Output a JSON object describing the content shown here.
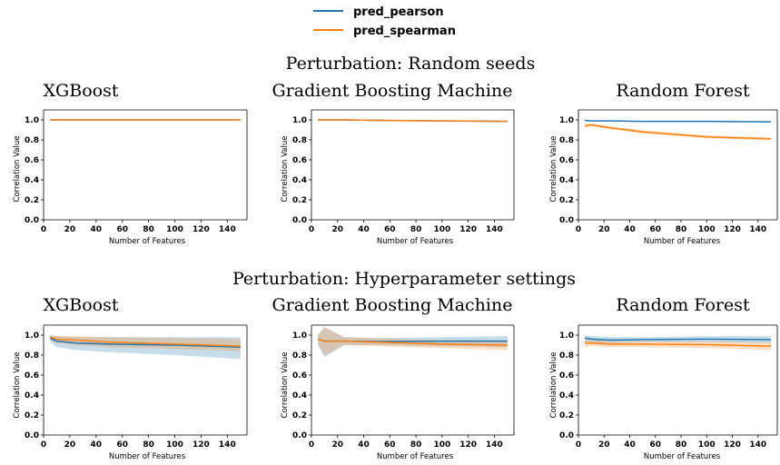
{
  "legend": {
    "entries": [
      {
        "label": "pred_pearson",
        "color": "#1f77b4"
      },
      {
        "label": "pred_spearman",
        "color": "#ff7f0e"
      }
    ]
  },
  "sections": [
    {
      "title": "Perturbation: Random seeds"
    },
    {
      "title": "Perturbation: Hyperparameter settings"
    }
  ],
  "chart_data": [
    {
      "type": "line",
      "section": "Perturbation: Random seeds",
      "title": "XGBoost",
      "xlabel": "Number of Features",
      "ylabel": "Correlation Value",
      "xlim": [
        0,
        155
      ],
      "ylim": [
        0,
        1.1
      ],
      "xticks": [
        0,
        20,
        40,
        60,
        80,
        100,
        120,
        140
      ],
      "yticks": [
        0.0,
        0.2,
        0.4,
        0.6,
        0.8,
        1.0
      ],
      "x": [
        5,
        10,
        25,
        50,
        100,
        150
      ],
      "series": [
        {
          "name": "pred_pearson",
          "color": "#1f77b4",
          "values": [
            1.0,
            1.0,
            1.0,
            1.0,
            1.0,
            1.0
          ],
          "lower": [
            1.0,
            1.0,
            1.0,
            1.0,
            1.0,
            1.0
          ],
          "upper": [
            1.0,
            1.0,
            1.0,
            1.0,
            1.0,
            1.0
          ]
        },
        {
          "name": "pred_spearman",
          "color": "#ff7f0e",
          "values": [
            1.0,
            1.0,
            1.0,
            1.0,
            1.0,
            1.0
          ],
          "lower": [
            1.0,
            1.0,
            1.0,
            1.0,
            1.0,
            1.0
          ],
          "upper": [
            1.0,
            1.0,
            1.0,
            1.0,
            1.0,
            1.0
          ]
        }
      ]
    },
    {
      "type": "line",
      "section": "Perturbation: Random seeds",
      "title": "Gradient Boosting Machine",
      "xlabel": "Number of Features",
      "ylabel": "Correlation Value",
      "xlim": [
        0,
        155
      ],
      "ylim": [
        0,
        1.1
      ],
      "xticks": [
        0,
        20,
        40,
        60,
        80,
        100,
        120,
        140
      ],
      "yticks": [
        0.0,
        0.2,
        0.4,
        0.6,
        0.8,
        1.0
      ],
      "x": [
        5,
        10,
        25,
        50,
        100,
        150
      ],
      "series": [
        {
          "name": "pred_pearson",
          "color": "#1f77b4",
          "values": [
            1.0,
            1.0,
            1.0,
            0.995,
            0.99,
            0.985
          ],
          "lower": [
            0.99,
            0.995,
            0.995,
            0.99,
            0.985,
            0.98
          ],
          "upper": [
            1.0,
            1.0,
            1.0,
            1.0,
            0.995,
            0.99
          ]
        },
        {
          "name": "pred_spearman",
          "color": "#ff7f0e",
          "values": [
            1.0,
            1.0,
            1.0,
            0.995,
            0.99,
            0.985
          ],
          "lower": [
            0.985,
            0.995,
            0.995,
            0.99,
            0.985,
            0.98
          ],
          "upper": [
            1.0,
            1.0,
            1.0,
            1.0,
            0.995,
            0.99
          ]
        }
      ]
    },
    {
      "type": "line",
      "section": "Perturbation: Random seeds",
      "title": "Random Forest",
      "xlabel": "Number of Features",
      "ylabel": "Correlation Value",
      "xlim": [
        0,
        155
      ],
      "ylim": [
        0,
        1.1
      ],
      "xticks": [
        0,
        20,
        40,
        60,
        80,
        100,
        120,
        140
      ],
      "yticks": [
        0.0,
        0.2,
        0.4,
        0.6,
        0.8,
        1.0
      ],
      "x": [
        5,
        10,
        25,
        50,
        100,
        150
      ],
      "series": [
        {
          "name": "pred_pearson",
          "color": "#1f77b4",
          "values": [
            0.995,
            0.99,
            0.99,
            0.985,
            0.985,
            0.98
          ],
          "lower": [
            0.99,
            0.985,
            0.985,
            0.98,
            0.98,
            0.975
          ],
          "upper": [
            1.0,
            0.995,
            0.995,
            0.99,
            0.99,
            0.985
          ]
        },
        {
          "name": "pred_spearman",
          "color": "#ff7f0e",
          "values": [
            0.94,
            0.95,
            0.92,
            0.88,
            0.83,
            0.81
          ],
          "lower": [
            0.92,
            0.935,
            0.905,
            0.865,
            0.815,
            0.795
          ],
          "upper": [
            0.96,
            0.965,
            0.935,
            0.895,
            0.845,
            0.825
          ]
        }
      ]
    },
    {
      "type": "line",
      "section": "Perturbation: Hyperparameter settings",
      "title": "XGBoost",
      "xlabel": "Number of Features",
      "ylabel": "Correlation Value",
      "xlim": [
        0,
        155
      ],
      "ylim": [
        0,
        1.1
      ],
      "xticks": [
        0,
        20,
        40,
        60,
        80,
        100,
        120,
        140
      ],
      "yticks": [
        0.0,
        0.2,
        0.4,
        0.6,
        0.8,
        1.0
      ],
      "x": [
        5,
        10,
        25,
        50,
        100,
        150
      ],
      "series": [
        {
          "name": "pred_pearson",
          "color": "#1f77b4",
          "values": [
            0.97,
            0.94,
            0.92,
            0.91,
            0.9,
            0.88
          ],
          "lower": [
            0.93,
            0.88,
            0.85,
            0.83,
            0.8,
            0.76
          ],
          "upper": [
            1.0,
            0.99,
            0.98,
            0.98,
            0.98,
            0.98
          ]
        },
        {
          "name": "pred_spearman",
          "color": "#ff7f0e",
          "values": [
            0.98,
            0.96,
            0.95,
            0.93,
            0.91,
            0.89
          ],
          "lower": [
            0.95,
            0.92,
            0.9,
            0.88,
            0.86,
            0.84
          ],
          "upper": [
            1.0,
            0.99,
            0.99,
            0.98,
            0.97,
            0.96
          ]
        }
      ]
    },
    {
      "type": "line",
      "section": "Perturbation: Hyperparameter settings",
      "title": "Gradient Boosting Machine",
      "xlabel": "Number of Features",
      "ylabel": "Correlation Value",
      "xlim": [
        0,
        155
      ],
      "ylim": [
        0,
        1.1
      ],
      "xticks": [
        0,
        20,
        40,
        60,
        80,
        100,
        120,
        140
      ],
      "yticks": [
        0.0,
        0.2,
        0.4,
        0.6,
        0.8,
        1.0
      ],
      "x": [
        5,
        10,
        25,
        50,
        100,
        150
      ],
      "series": [
        {
          "name": "pred_pearson",
          "color": "#1f77b4",
          "values": [
            0.96,
            0.94,
            0.94,
            0.935,
            0.94,
            0.94
          ],
          "lower": [
            0.9,
            0.78,
            0.9,
            0.9,
            0.89,
            0.88
          ],
          "upper": [
            1.0,
            1.08,
            0.98,
            0.97,
            0.98,
            0.99
          ]
        },
        {
          "name": "pred_spearman",
          "color": "#ff7f0e",
          "values": [
            0.96,
            0.94,
            0.94,
            0.93,
            0.91,
            0.9
          ],
          "lower": [
            0.9,
            0.8,
            0.9,
            0.89,
            0.87,
            0.85
          ],
          "upper": [
            1.0,
            1.08,
            0.98,
            0.97,
            0.95,
            0.95
          ]
        }
      ]
    },
    {
      "type": "line",
      "section": "Perturbation: Hyperparameter settings",
      "title": "Random Forest",
      "xlabel": "Number of Features",
      "ylabel": "Correlation Value",
      "xlim": [
        0,
        155
      ],
      "ylim": [
        0,
        1.1
      ],
      "xticks": [
        0,
        20,
        40,
        60,
        80,
        100,
        120,
        140
      ],
      "yticks": [
        0.0,
        0.2,
        0.4,
        0.6,
        0.8,
        1.0
      ],
      "x": [
        5,
        10,
        25,
        50,
        100,
        150
      ],
      "series": [
        {
          "name": "pred_pearson",
          "color": "#1f77b4",
          "values": [
            0.97,
            0.96,
            0.95,
            0.955,
            0.96,
            0.955
          ],
          "lower": [
            0.93,
            0.93,
            0.92,
            0.93,
            0.93,
            0.92
          ],
          "upper": [
            1.0,
            0.99,
            0.98,
            0.98,
            0.99,
            0.99
          ]
        },
        {
          "name": "pred_spearman",
          "color": "#ff7f0e",
          "values": [
            0.92,
            0.92,
            0.91,
            0.91,
            0.905,
            0.89
          ],
          "lower": [
            0.88,
            0.89,
            0.88,
            0.88,
            0.87,
            0.85
          ],
          "upper": [
            0.96,
            0.95,
            0.94,
            0.94,
            0.94,
            0.93
          ]
        }
      ]
    }
  ]
}
